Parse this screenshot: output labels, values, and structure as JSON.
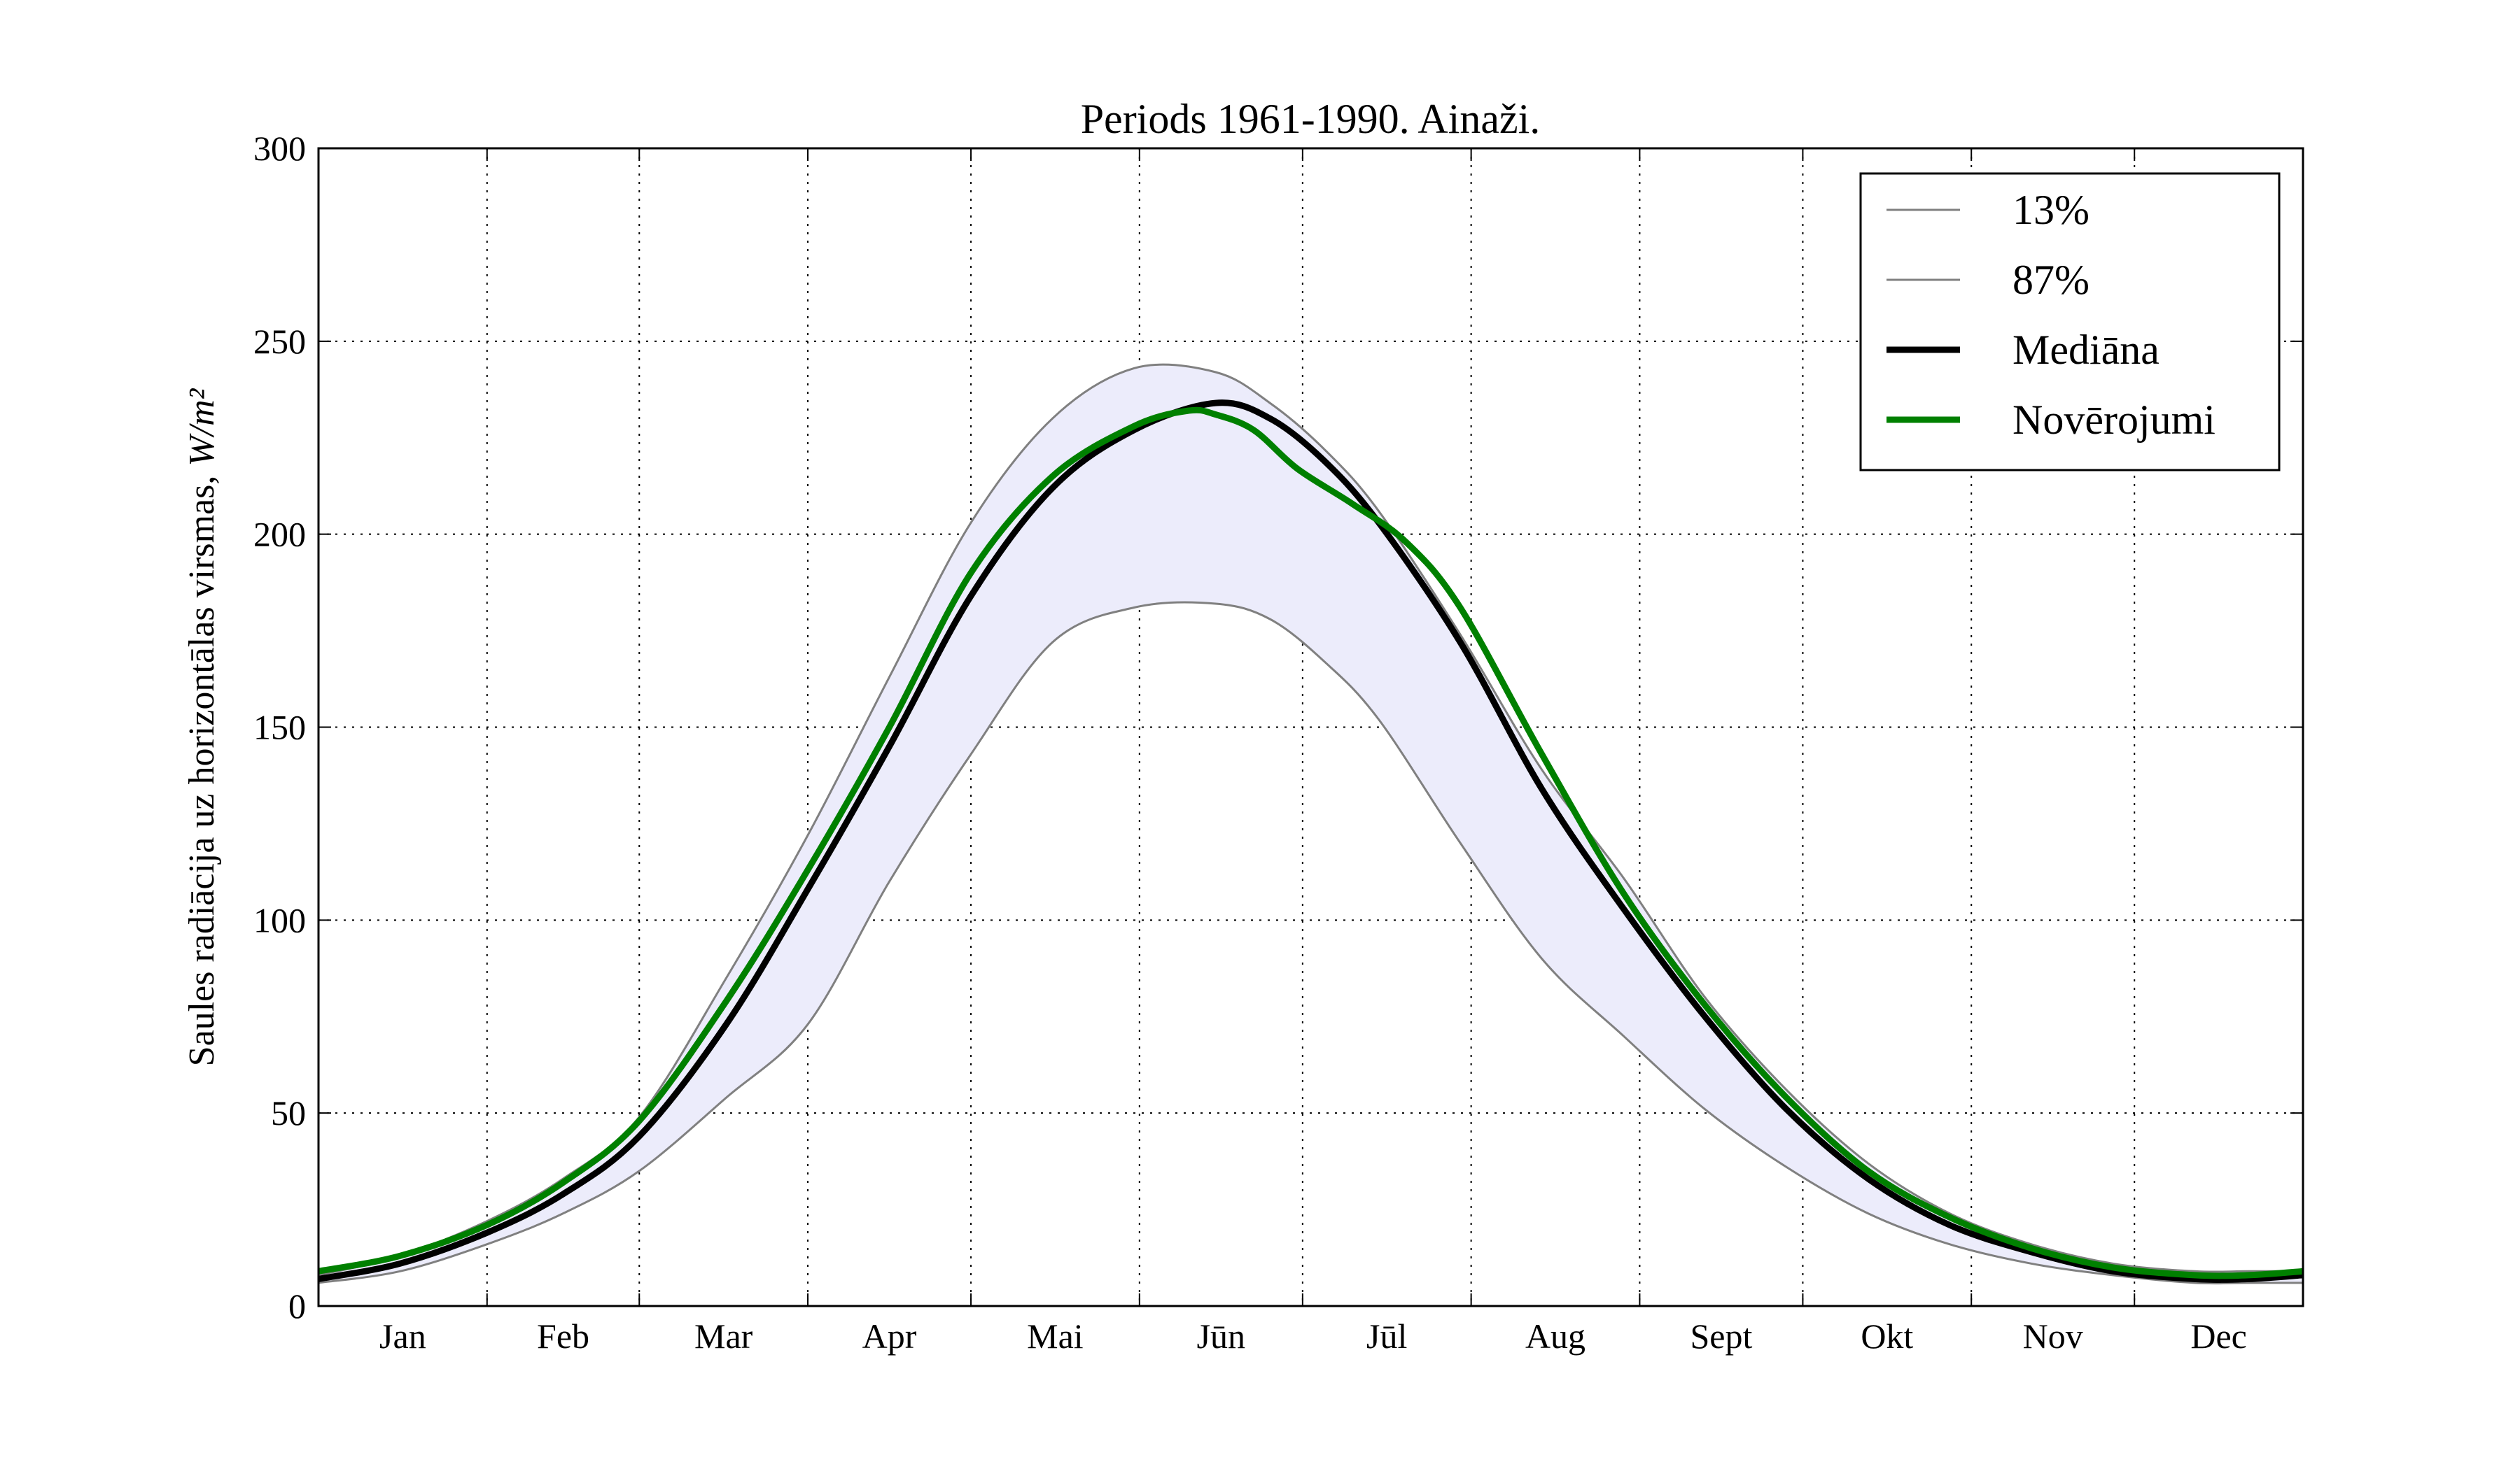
{
  "chart_data": {
    "type": "line",
    "title": "Periods 1961-1990. Ainaži.",
    "xlabel": "",
    "ylabel": "Saules radiācija uz horizontālas virsmas,",
    "ylabel_unit": "W/m²",
    "ylim": [
      0,
      300
    ],
    "yticks": [
      0,
      50,
      100,
      150,
      200,
      250,
      300
    ],
    "xlim": [
      0,
      365
    ],
    "grid": true,
    "legend_position": "top-right",
    "month_labels": [
      "Jan",
      "Feb",
      "Mar",
      "Apr",
      "Mai",
      "Jūn",
      "Jūl",
      "Aug",
      "Sept",
      "Okt",
      "Nov",
      "Dec"
    ],
    "month_boundaries": [
      0,
      31,
      59,
      90,
      120,
      151,
      181,
      212,
      243,
      273,
      304,
      334,
      365
    ],
    "shaded_band": {
      "between": [
        "13%",
        "87%"
      ],
      "color": "#ececfb"
    },
    "series": [
      {
        "name": "13%",
        "color": "#808080",
        "width": "thin",
        "x": [
          0,
          15,
          31,
          45,
          59,
          75,
          90,
          105,
          120,
          135,
          150,
          165,
          175,
          185,
          195,
          210,
          225,
          240,
          255,
          270,
          285,
          300,
          315,
          330,
          345,
          355,
          365
        ],
        "y": [
          6,
          9,
          16,
          24,
          35,
          54,
          73,
          110,
          143,
          172,
          181,
          182,
          178,
          167,
          152,
          120,
          90,
          70,
          51,
          36,
          24,
          16,
          11,
          8,
          6,
          6,
          6
        ]
      },
      {
        "name": "87%",
        "color": "#808080",
        "width": "thin",
        "x": [
          0,
          15,
          31,
          45,
          59,
          75,
          90,
          105,
          120,
          135,
          150,
          165,
          175,
          185,
          195,
          210,
          225,
          240,
          255,
          270,
          285,
          300,
          315,
          330,
          345,
          355,
          365
        ],
        "y": [
          8,
          13,
          22,
          33,
          49,
          85,
          122,
          163,
          203,
          230,
          243,
          242,
          234,
          222,
          206,
          174,
          139,
          111,
          80,
          56,
          37,
          24,
          16,
          11,
          9,
          9,
          9
        ]
      },
      {
        "name": "Mediāna",
        "color": "#000000",
        "width": "thick",
        "x": [
          0,
          15,
          31,
          45,
          59,
          75,
          90,
          105,
          120,
          135,
          150,
          165,
          175,
          185,
          195,
          210,
          225,
          240,
          255,
          270,
          285,
          300,
          315,
          330,
          345,
          355,
          365
        ],
        "y": [
          7,
          11,
          19,
          29,
          44,
          73,
          108,
          145,
          184,
          212,
          227,
          234,
          230,
          219,
          203,
          172,
          134,
          103,
          75,
          51,
          33,
          21,
          14,
          9,
          7,
          7,
          8
        ]
      },
      {
        "name": "Novērojumi",
        "color": "#008000",
        "width": "thick",
        "x": [
          0,
          15,
          31,
          45,
          59,
          75,
          90,
          105,
          120,
          135,
          150,
          160,
          165,
          172,
          180,
          190,
          200,
          210,
          225,
          240,
          255,
          270,
          285,
          300,
          315,
          330,
          345,
          355,
          365
        ],
        "y": [
          9,
          13,
          21,
          32,
          48,
          79,
          113,
          150,
          190,
          215,
          228,
          232,
          231,
          227,
          217,
          208,
          198,
          181,
          143,
          107,
          78,
          54,
          35,
          23,
          15,
          10,
          8,
          8,
          9
        ]
      }
    ]
  }
}
